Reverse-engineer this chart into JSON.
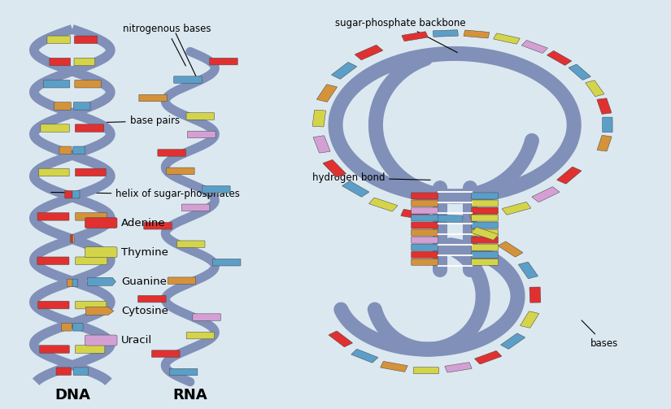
{
  "background_color": "#dce8f0",
  "title_dna": "DNA",
  "title_rna": "RNA",
  "title_fontsize": 13,
  "legend_items": [
    {
      "label": "Adenine",
      "color": "#e03030"
    },
    {
      "label": "Thymine",
      "color": "#d4d44a"
    },
    {
      "label": "Guanine",
      "color": "#5b9fc8"
    },
    {
      "label": "Cytosine",
      "color": "#d4933a"
    },
    {
      "label": "Uracil",
      "color": "#d4a0d4"
    }
  ],
  "strand_color": "#8090b8",
  "annotation_fontsize": 8.5
}
